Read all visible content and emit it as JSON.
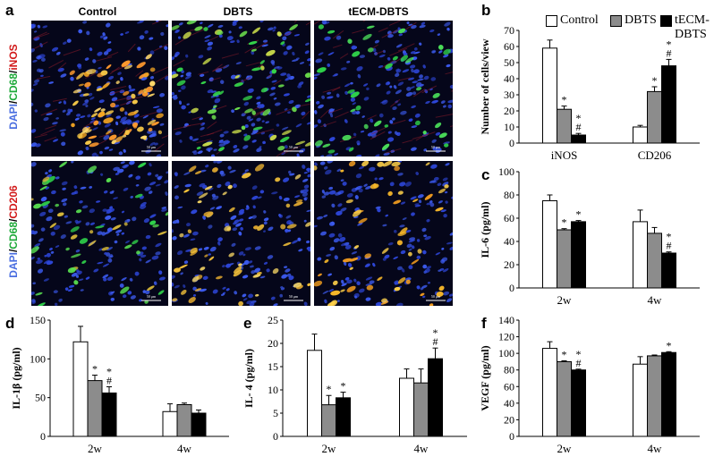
{
  "panel_letters": {
    "a": "a",
    "b": "b",
    "c": "c",
    "d": "d",
    "e": "e",
    "f": "f"
  },
  "micrographs": {
    "columns": [
      "Control",
      "DBTS",
      "tECM-DBTS"
    ],
    "row_labels": [
      {
        "parts": [
          {
            "text": "DAPI",
            "color": "#4a6ee0"
          },
          {
            "text": "/",
            "color": "#000"
          },
          {
            "text": "CD68",
            "color": "#1faa3a"
          },
          {
            "text": "/",
            "color": "#000"
          },
          {
            "text": "iNOS",
            "color": "#d21b1b"
          }
        ]
      },
      {
        "parts": [
          {
            "text": "DAPI",
            "color": "#4a6ee0"
          },
          {
            "text": "/",
            "color": "#000"
          },
          {
            "text": "CD68",
            "color": "#1faa3a"
          },
          {
            "text": "/",
            "color": "#000"
          },
          {
            "text": "CD206",
            "color": "#d21b1b"
          }
        ]
      }
    ],
    "scale_bar": "50 μm"
  },
  "legend": [
    "Control",
    "DBTS",
    "tECM-DBTS"
  ],
  "colors": {
    "control": "#ffffff",
    "dbts": "#8c8c8c",
    "tecm": "#000000"
  },
  "chart_data": [
    {
      "id": "b",
      "type": "bar",
      "categories": [
        "iNOS",
        "CD206"
      ],
      "series": [
        {
          "name": "Control",
          "values": [
            59,
            10
          ],
          "errors": [
            5,
            1
          ]
        },
        {
          "name": "DBTS",
          "values": [
            21,
            32
          ],
          "errors": [
            2,
            3
          ]
        },
        {
          "name": "tECM-DBTS",
          "values": [
            5,
            48
          ],
          "errors": [
            1,
            4
          ]
        }
      ],
      "annotations": [
        [
          "",
          "",
          ""
        ],
        [
          "",
          "*",
          ""
        ]
      ],
      "sig_marks": [
        [
          null,
          [
            "*"
          ],
          [
            "*",
            "#"
          ]
        ],
        [
          null,
          [
            "*"
          ],
          [
            "*",
            "#"
          ]
        ]
      ],
      "ylabel": "Number of cells/view",
      "ylim": [
        0,
        70
      ],
      "yticks": [
        0,
        10,
        20,
        30,
        40,
        50,
        60,
        70
      ]
    },
    {
      "id": "c",
      "type": "bar",
      "categories": [
        "2w",
        "4w"
      ],
      "series": [
        {
          "name": "Control",
          "values": [
            75,
            57
          ],
          "errors": [
            5,
            10
          ]
        },
        {
          "name": "DBTS",
          "values": [
            50,
            47
          ],
          "errors": [
            1,
            5
          ]
        },
        {
          "name": "tECM-DBTS",
          "values": [
            57,
            30
          ],
          "errors": [
            1,
            1
          ]
        }
      ],
      "sig_marks": [
        [
          null,
          [
            "*"
          ],
          [
            "*"
          ]
        ],
        [
          null,
          null,
          [
            "*",
            "#"
          ]
        ]
      ],
      "ylabel": "IL-6 (pg/ml)",
      "ylim": [
        0,
        100
      ],
      "yticks": [
        0,
        20,
        40,
        60,
        80,
        100
      ]
    },
    {
      "id": "d",
      "type": "bar",
      "categories": [
        "2w",
        "4w"
      ],
      "series": [
        {
          "name": "Control",
          "values": [
            122,
            32
          ],
          "errors": [
            20,
            10
          ]
        },
        {
          "name": "DBTS",
          "values": [
            72,
            41
          ],
          "errors": [
            7,
            2
          ]
        },
        {
          "name": "tECM-DBTS",
          "values": [
            56,
            30
          ],
          "errors": [
            8,
            4
          ]
        }
      ],
      "sig_marks": [
        [
          null,
          [
            "*"
          ],
          [
            "*",
            "#"
          ]
        ],
        [
          null,
          null,
          null
        ]
      ],
      "ylabel": "IL-1β (pg/ml)",
      "ylim": [
        0,
        150
      ],
      "yticks": [
        0,
        50,
        100,
        150
      ]
    },
    {
      "id": "e",
      "type": "bar",
      "categories": [
        "2w",
        "4w"
      ],
      "series": [
        {
          "name": "Control",
          "values": [
            18.5,
            12.5
          ],
          "errors": [
            3.5,
            2
          ]
        },
        {
          "name": "DBTS",
          "values": [
            6.8,
            11.5
          ],
          "errors": [
            2,
            3
          ]
        },
        {
          "name": "tECM-DBTS",
          "values": [
            8.3,
            16.7
          ],
          "errors": [
            1.2,
            2.3
          ]
        }
      ],
      "sig_marks": [
        [
          null,
          [
            "*"
          ],
          [
            "*"
          ]
        ],
        [
          null,
          null,
          [
            "*",
            "#"
          ]
        ]
      ],
      "ylabel": "IL- 4 (pg/ml)",
      "ylim": [
        0,
        25
      ],
      "yticks": [
        0,
        5,
        10,
        15,
        20,
        25
      ]
    },
    {
      "id": "f",
      "type": "bar",
      "categories": [
        "2w",
        "4w"
      ],
      "series": [
        {
          "name": "Control",
          "values": [
            106,
            87
          ],
          "errors": [
            8,
            9
          ]
        },
        {
          "name": "DBTS",
          "values": [
            90,
            97
          ],
          "errors": [
            1,
            1
          ]
        },
        {
          "name": "tECM-DBTS",
          "values": [
            80,
            101
          ],
          "errors": [
            1,
            1
          ]
        }
      ],
      "sig_marks": [
        [
          null,
          [
            "*"
          ],
          [
            "*",
            "#"
          ]
        ],
        [
          null,
          null,
          [
            "*"
          ]
        ]
      ],
      "ylabel": "VEGF (pg/ml)",
      "ylim": [
        0,
        140
      ],
      "yticks": [
        0,
        20,
        40,
        60,
        80,
        100,
        120,
        140
      ]
    }
  ]
}
